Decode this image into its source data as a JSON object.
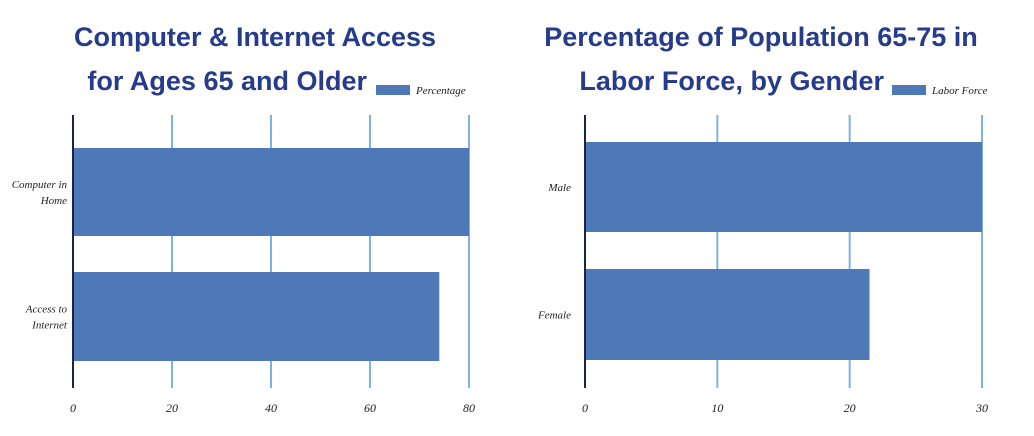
{
  "chart_data": [
    {
      "type": "bar",
      "orientation": "horizontal",
      "title_lines": [
        "Computer & Internet Access",
        "for Ages 65 and Older"
      ],
      "categories": [
        [
          "Computer in",
          "Home"
        ],
        [
          "Access to",
          "Internet"
        ]
      ],
      "series": [
        {
          "name": "Percentage",
          "values": [
            80,
            74
          ]
        }
      ],
      "xticks": [
        0,
        20,
        40,
        60,
        80
      ],
      "xlim": [
        0,
        80
      ],
      "legend_position": "top-right",
      "grid": true,
      "color": "#4f78b7"
    },
    {
      "type": "bar",
      "orientation": "horizontal",
      "title_lines": [
        "Percentage of Population 65-75 in",
        "Labor Force, by Gender"
      ],
      "categories": [
        [
          "Male"
        ],
        [
          "Female"
        ]
      ],
      "series": [
        {
          "name": "Labor Force",
          "values": [
            30,
            21.5
          ]
        }
      ],
      "xticks": [
        0,
        10,
        20,
        30
      ],
      "xlim": [
        0,
        30
      ],
      "legend_position": "top-right",
      "grid": true,
      "color": "#4f78b7"
    }
  ]
}
